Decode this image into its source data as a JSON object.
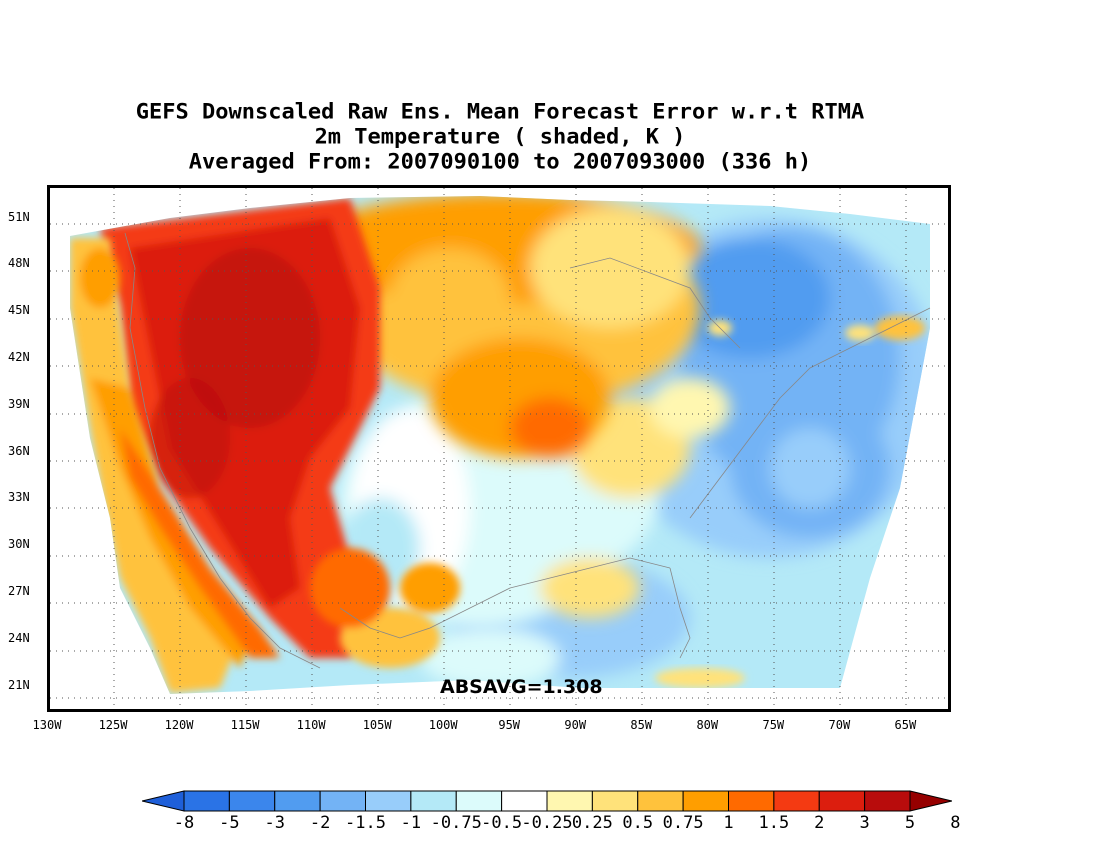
{
  "title": {
    "line1": "GEFS Downscaled Raw Ens. Mean Forecast Error w.r.t RTMA",
    "line2": "2m Temperature ( shaded, K )",
    "line3": "Averaged From: 2007090100 to 2007093000 (336 h)"
  },
  "axes": {
    "lat_labels": [
      "51N",
      "48N",
      "45N",
      "42N",
      "39N",
      "36N",
      "33N",
      "30N",
      "27N",
      "24N",
      "21N"
    ],
    "lat_values": [
      51,
      48,
      45,
      42,
      39,
      36,
      33,
      30,
      27,
      24,
      21
    ],
    "lon_labels": [
      "130W",
      "125W",
      "120W",
      "115W",
      "110W",
      "105W",
      "100W",
      "95W",
      "90W",
      "85W",
      "80W",
      "75W",
      "70W",
      "65W"
    ],
    "lon_values": [
      -130,
      -125,
      -120,
      -115,
      -110,
      -105,
      -100,
      -95,
      -90,
      -85,
      -80,
      -75,
      -70,
      -65
    ],
    "lon_range": [
      -130,
      -62
    ],
    "lat_range": [
      19.5,
      52.9
    ],
    "grid": "dotted"
  },
  "annotation": {
    "absavg": "ABSAVG=1.308"
  },
  "colorbar": {
    "tick_labels": [
      "-8",
      "-5",
      "-3",
      "-2",
      "-1.5",
      "-1",
      "-0.75",
      "-0.5",
      "-0.25",
      "0.25",
      "0.5",
      "0.75",
      "1",
      "1.5",
      "2",
      "3",
      "5",
      "8"
    ],
    "colors": [
      "#1e5fd9",
      "#2a73e6",
      "#3b86ec",
      "#519cf0",
      "#73b3f5",
      "#98cdfa",
      "#b4e9f7",
      "#dcfbfb",
      "#ffffff",
      "#fff7b0",
      "#ffe27a",
      "#ffc23c",
      "#ff9e00",
      "#ff6a00",
      "#f43a12",
      "#dc1e0e",
      "#b80c0c",
      "#960000"
    ],
    "under_color": "#1e5fd9",
    "over_color": "#960000"
  },
  "field_summary": {
    "west_bias": "strong positive (+2 to +5 K, red)",
    "east_bias": "negative (-0.5 to -2 K, blue)",
    "pacific_coast_bias": "positive (+0.5 to +2 K, orange/yellow)",
    "gulf_atlantic_bias": "negative (-0.25 to -1 K, light blue)"
  }
}
